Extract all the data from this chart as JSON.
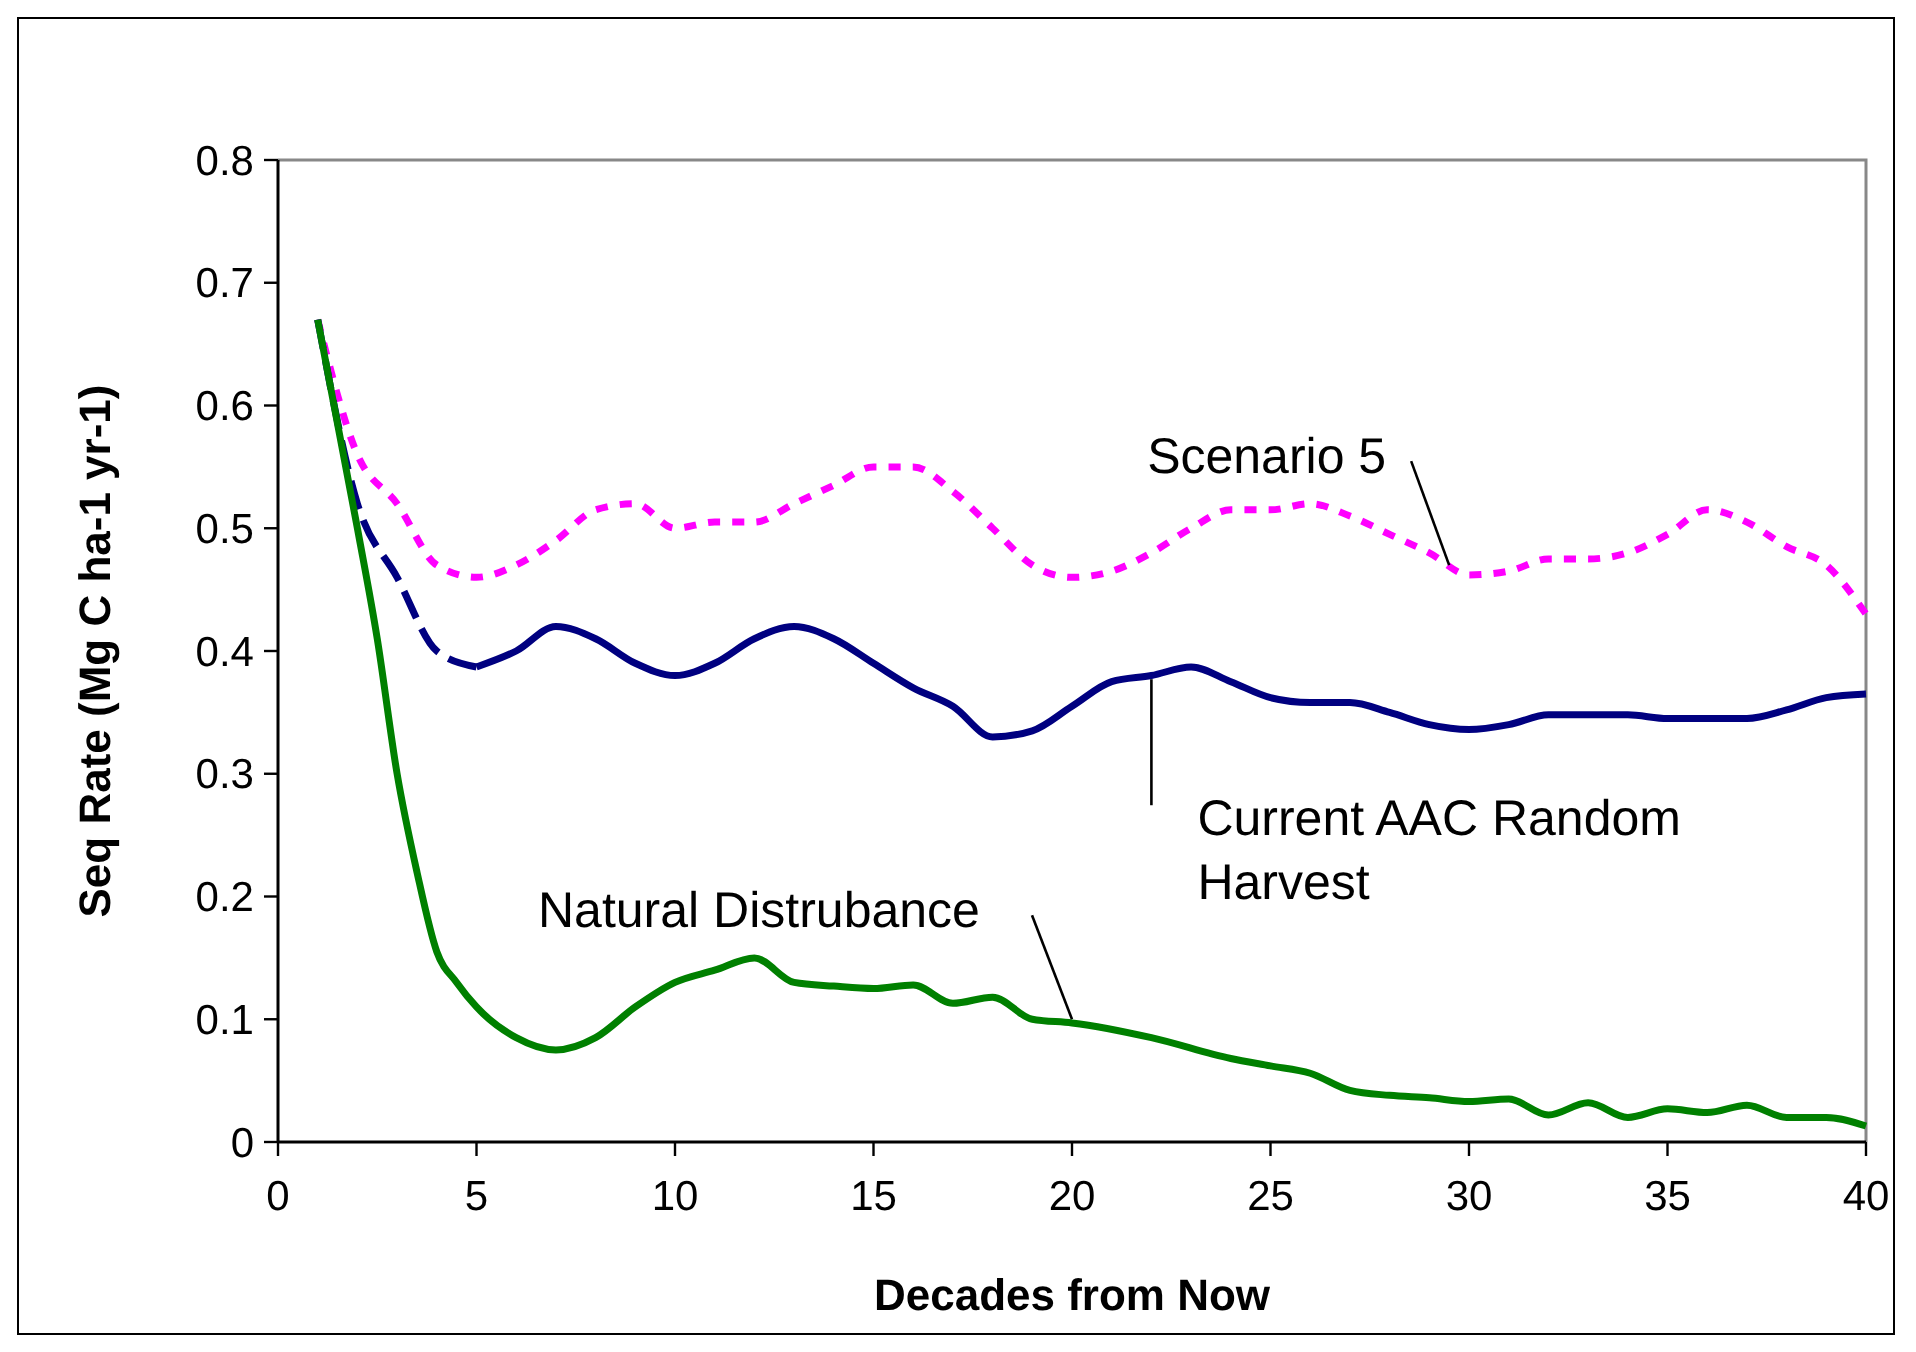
{
  "chart_data": {
    "type": "line",
    "xlabel": "Decades from Now",
    "ylabel": "Seq Rate (Mg C ha-1 yr-1)",
    "xlim": [
      0,
      40
    ],
    "ylim": [
      0,
      0.8
    ],
    "xticks": [
      0,
      5,
      10,
      15,
      20,
      25,
      30,
      35,
      40
    ],
    "yticks": [
      0,
      0.1,
      0.2,
      0.3,
      0.4,
      0.5,
      0.6,
      0.7,
      0.8
    ],
    "grid": false,
    "marker": "none",
    "series": [
      {
        "color": "#ff00ff",
        "line_style": "dotted",
        "x": [
          1,
          2,
          3,
          4,
          5,
          6,
          7,
          8,
          9,
          10,
          11,
          12,
          13,
          14,
          15,
          16,
          17,
          18,
          19,
          20,
          21,
          22,
          23,
          24,
          25,
          26,
          27,
          28,
          29,
          30,
          31,
          32,
          33,
          34,
          35,
          36,
          37,
          38,
          39,
          40
        ],
        "values": [
          0.67,
          0.56,
          0.52,
          0.47,
          0.46,
          0.47,
          0.49,
          0.515,
          0.52,
          0.5,
          0.505,
          0.505,
          0.52,
          0.535,
          0.55,
          0.55,
          0.53,
          0.5,
          0.47,
          0.46,
          0.465,
          0.48,
          0.5,
          0.515,
          0.515,
          0.52,
          0.51,
          0.495,
          0.48,
          0.462,
          0.465,
          0.475,
          0.475,
          0.48,
          0.495,
          0.515,
          0.505,
          0.485,
          0.47,
          0.43
        ]
      },
      {
        "color": "#000080",
        "line_style": "dashed",
        "x": [
          1,
          2,
          3,
          4,
          5
        ],
        "values": [
          0.67,
          0.52,
          0.46,
          0.4,
          0.387
        ]
      },
      {
        "color": "#000080",
        "line_style": "solid",
        "x": [
          5,
          6,
          7,
          8,
          9,
          10,
          11,
          12,
          13,
          14,
          15,
          16,
          17,
          18,
          19,
          20,
          21,
          22,
          23,
          24,
          25,
          26,
          27,
          28,
          29,
          30,
          31,
          32,
          33,
          34,
          35,
          36,
          37,
          38,
          39,
          40
        ],
        "values": [
          0.387,
          0.4,
          0.42,
          0.41,
          0.39,
          0.38,
          0.39,
          0.41,
          0.42,
          0.41,
          0.39,
          0.37,
          0.355,
          0.33,
          0.335,
          0.355,
          0.375,
          0.38,
          0.387,
          0.375,
          0.362,
          0.358,
          0.358,
          0.35,
          0.34,
          0.336,
          0.34,
          0.348,
          0.348,
          0.348,
          0.345,
          0.345,
          0.345,
          0.352,
          0.362,
          0.365
        ]
      },
      {
        "color": "#008000",
        "line_style": "solid",
        "x": [
          1,
          2,
          2.5,
          3,
          3.5,
          4,
          4.5,
          5,
          6,
          7,
          8,
          9,
          10,
          11,
          12,
          13,
          14,
          15,
          16,
          17,
          18,
          19,
          20,
          22,
          24,
          25,
          26,
          27,
          28,
          29,
          30,
          31,
          32,
          33,
          34,
          35,
          36,
          37,
          38,
          39,
          40
        ],
        "values": [
          0.67,
          0.5,
          0.41,
          0.3,
          0.22,
          0.155,
          0.13,
          0.11,
          0.085,
          0.075,
          0.085,
          0.11,
          0.13,
          0.14,
          0.15,
          0.13,
          0.127,
          0.125,
          0.128,
          0.113,
          0.118,
          0.1,
          0.097,
          0.085,
          0.068,
          0.062,
          0.056,
          0.042,
          0.038,
          0.036,
          0.033,
          0.035,
          0.022,
          0.032,
          0.02,
          0.027,
          0.024,
          0.03,
          0.02,
          0.02,
          0.013
        ]
      }
    ],
    "annotations": [
      {
        "text": "Scenario 5",
        "x": 29.5,
        "y": 0.47
      },
      {
        "text": "Current AAC Random Harvest",
        "x": 22,
        "y": 0.377
      },
      {
        "text": "Natural Distrubance",
        "x": 20,
        "y": 0.1
      }
    ]
  }
}
